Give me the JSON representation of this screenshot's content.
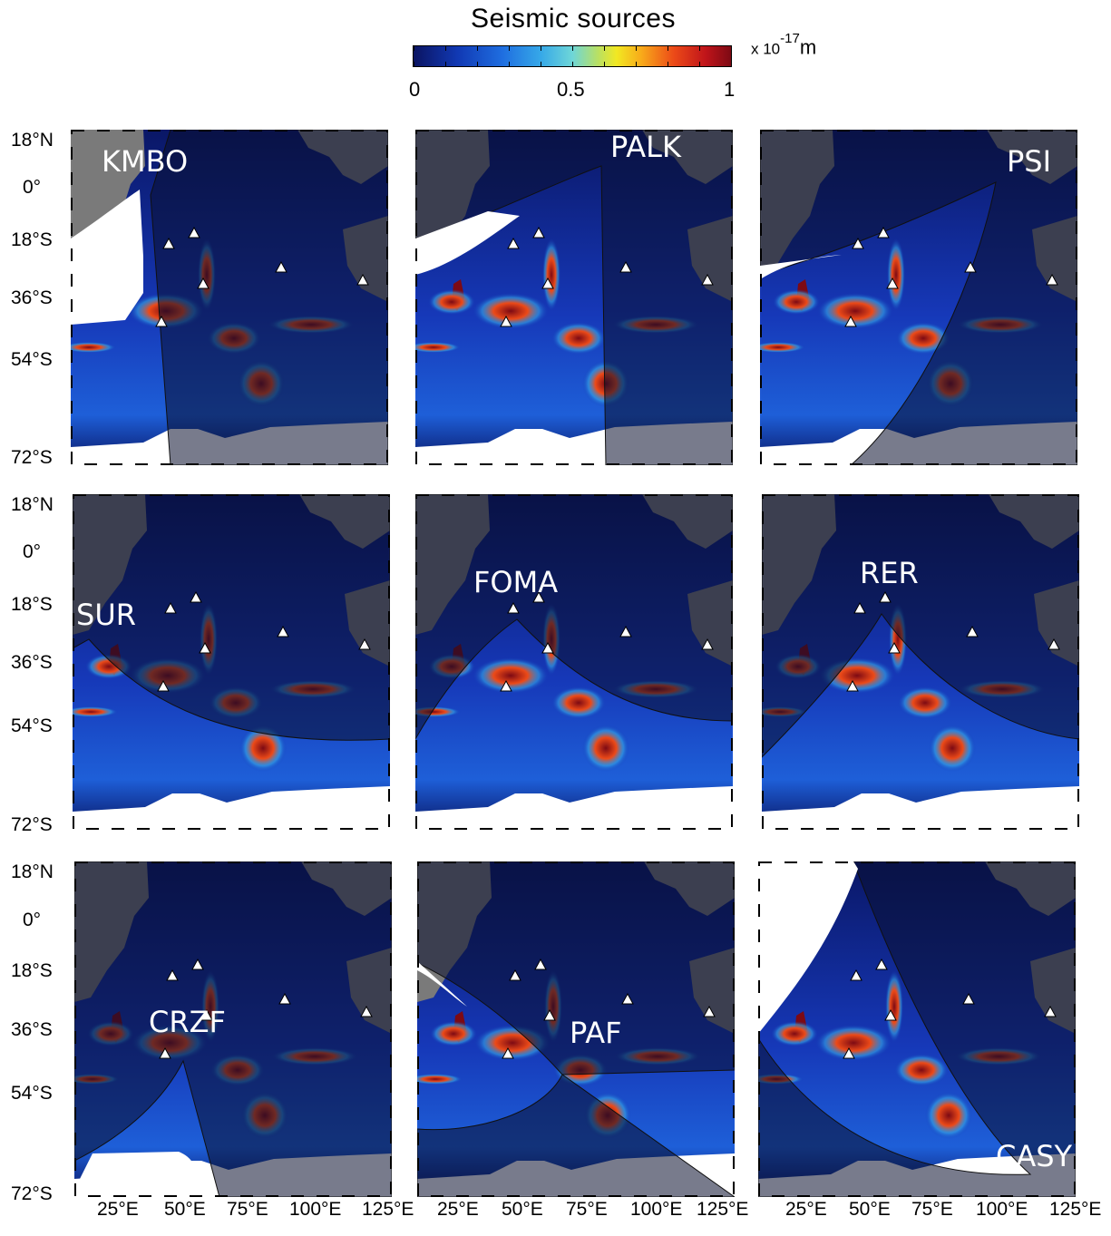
{
  "colorbar": {
    "title": "Seismic sources",
    "unit_prefix": "x 10",
    "unit_exponent": "-17",
    "unit_suffix": "m",
    "ticks": [
      "0",
      "0.5",
      "1"
    ],
    "colors": [
      "#0b1462",
      "#1139b4",
      "#1f6ee0",
      "#36a8e8",
      "#6ed6d8",
      "#b8e064",
      "#f2e822",
      "#f8a81a",
      "#ec4a18",
      "#c0141a",
      "#7d0a14"
    ]
  },
  "axes": {
    "lat_labels": [
      "18°N",
      "0°",
      "18°S",
      "36°S",
      "54°S",
      "72°S"
    ],
    "row2_lat_labels": [
      "18°N",
      "0°",
      "18°S",
      "36°S",
      "54°S",
      "72°S"
    ],
    "row3_lat_labels": [
      "18°N",
      "0°",
      "18°S",
      "36°S",
      "54°S",
      "72°S"
    ],
    "lon_labels_col1": [
      "25°E",
      "50°E",
      "75°E",
      "100°E",
      "125°E"
    ],
    "lon_labels_col2": [
      "25°E",
      "50°E",
      "75°E",
      "100°E",
      "125°E"
    ],
    "lon_labels_col3": [
      "25°E",
      "50°E",
      "75°E",
      "100°E",
      "125°E"
    ],
    "lon_range": [
      10,
      130
    ],
    "lat_range": [
      -72,
      18
    ]
  },
  "panels": [
    {
      "station": "KMBO"
    },
    {
      "station": "PALK"
    },
    {
      "station": "PSI"
    },
    {
      "station": "SUR"
    },
    {
      "station": "FOMA"
    },
    {
      "station": "RER"
    },
    {
      "station": "CRZF"
    },
    {
      "station": "PAF"
    },
    {
      "station": "CASY"
    }
  ],
  "map_colors": {
    "ocean_dark": "#0a1766",
    "land": "#7a7a7a",
    "shadow": "rgba(10,14,45,0.55)",
    "white_cap": "#ffffff"
  }
}
